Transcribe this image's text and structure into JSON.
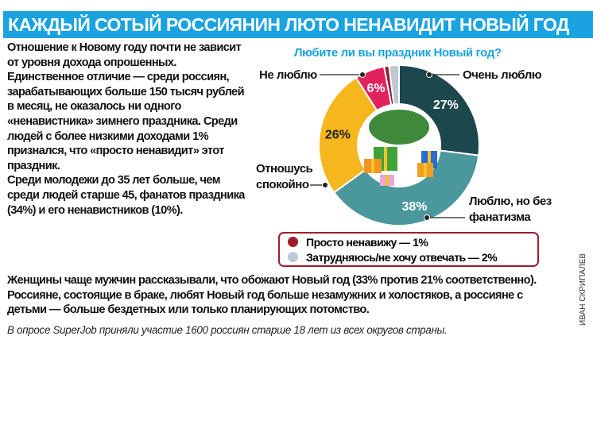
{
  "headline": "КАЖДЫЙ СОТЫЙ РОССИЯНИН ЛЮТО НЕНАВИДИТ НОВЫЙ ГОД",
  "lead": [
    "Отношение к Новому году почти не зависит от уровня дохода опрошенных. Единственное отличие — среди россиян, зарабатывающих больше 150 тысяч рублей в месяц, не оказалось ни одного «ненавистника» зимнего праздника. Среди людей с более низкими доходами 1% признался, что «просто ненавидит» этот праздник.",
    "Среди молодежи до 35 лет больше, чем среди людей старше 45, фанатов праздника (34%) и его ненавистников (10%)."
  ],
  "bottom": "Женщины чаще мужчин рассказывали, что обожают Новый год (33% против 21% соответственно). Россияне, состоящие в браке, любят Новый год больше незамужних и холостяков, а россияне с детьми — больше бездетных или только планирующих потомство.",
  "note": "В опросе SuperJob приняли участие 1600 россиян старше 18 лет из всех округов страны.",
  "credit": "ИВАН СКРИПАЛЕВ",
  "chart_data": {
    "type": "pie",
    "title": "Любите ли вы праздник Новый год?",
    "donut": true,
    "slices": [
      {
        "label": "Очень люблю",
        "value": 27,
        "display": "27%",
        "color": "#1b474d"
      },
      {
        "label": "Люблю, но без фанатизма",
        "value": 38,
        "display": "38%",
        "color": "#4a979c"
      },
      {
        "label": "Отношусь спокойно",
        "value": 26,
        "display": "26%",
        "color": "#f6b61d"
      },
      {
        "label": "Не люблю",
        "value": 6,
        "display": "6%",
        "color": "#e0225d"
      },
      {
        "label": "Просто ненавижу",
        "value": 1,
        "display": "1%",
        "color": "#9e1b2b"
      },
      {
        "label": "Затрудняюсь/не хочу отвечать",
        "value": 2,
        "display": "2%",
        "color": "#bccad6"
      }
    ],
    "legend": [
      {
        "text": "Просто ненавижу — 1%",
        "color": "#9e1b2b"
      },
      {
        "text": "Затрудняюсь/не хочу отвечать — 2%",
        "color": "#bccad6"
      }
    ]
  }
}
